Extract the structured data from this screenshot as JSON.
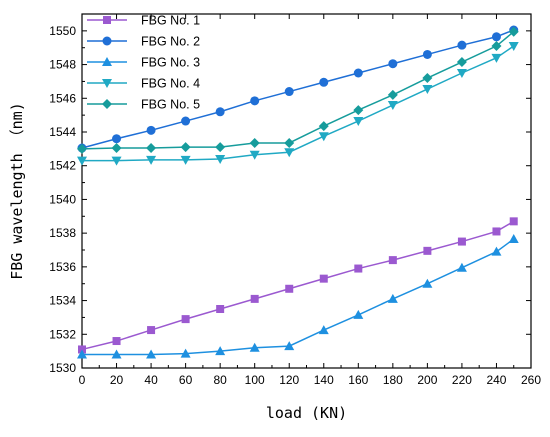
{
  "chart_data": {
    "type": "line",
    "title": "",
    "xlabel": "load (KN)",
    "ylabel": "FBG wavelength （nm)",
    "xlim": [
      0,
      260
    ],
    "ylim": [
      1530,
      1551
    ],
    "x_ticks": [
      0,
      20,
      40,
      60,
      80,
      100,
      120,
      140,
      160,
      180,
      200,
      220,
      240,
      260
    ],
    "y_ticks": [
      1530,
      1532,
      1534,
      1536,
      1538,
      1540,
      1542,
      1544,
      1546,
      1548,
      1550
    ],
    "grid": false,
    "legend_position": "top-left",
    "x": [
      0,
      20,
      40,
      60,
      80,
      100,
      120,
      140,
      160,
      180,
      200,
      220,
      240,
      250
    ],
    "series": [
      {
        "name": "FBG No. 1",
        "color": "#9b59d0",
        "marker": "square",
        "values": [
          1531.1,
          1531.6,
          1532.25,
          1532.9,
          1533.5,
          1534.1,
          1534.7,
          1535.3,
          1535.9,
          1536.4,
          1536.95,
          1537.5,
          1538.1,
          1538.7
        ]
      },
      {
        "name": "FBG No. 2",
        "color": "#1f6fd6",
        "marker": "circle",
        "values": [
          1543.05,
          1543.6,
          1544.1,
          1544.65,
          1545.2,
          1545.85,
          1546.4,
          1546.95,
          1547.5,
          1548.05,
          1548.6,
          1549.15,
          1549.65,
          1550.05
        ]
      },
      {
        "name": "FBG No. 3",
        "color": "#1e90e0",
        "marker": "triangle-up",
        "values": [
          1530.8,
          1530.8,
          1530.8,
          1530.85,
          1531.0,
          1531.2,
          1531.3,
          1532.25,
          1533.15,
          1534.1,
          1535.0,
          1535.95,
          1536.9,
          1537.65
        ]
      },
      {
        "name": "FBG No. 4",
        "color": "#20a9c4",
        "marker": "triangle-down",
        "values": [
          1542.3,
          1542.3,
          1542.35,
          1542.35,
          1542.4,
          1542.65,
          1542.8,
          1543.75,
          1544.65,
          1545.6,
          1546.55,
          1547.5,
          1548.4,
          1549.1
        ]
      },
      {
        "name": "FBG No. 5",
        "color": "#169c9c",
        "marker": "diamond",
        "values": [
          1543.0,
          1543.05,
          1543.05,
          1543.1,
          1543.1,
          1543.35,
          1543.35,
          1544.35,
          1545.3,
          1546.2,
          1547.2,
          1548.15,
          1549.1,
          1549.95
        ]
      }
    ]
  }
}
